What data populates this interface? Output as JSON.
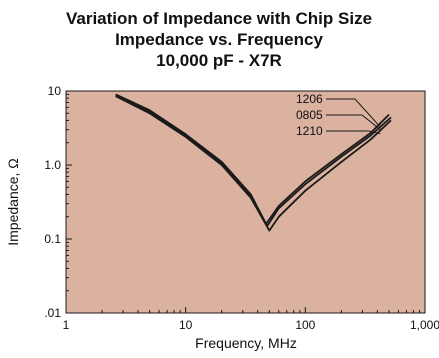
{
  "chart_data": {
    "type": "line",
    "title_lines": [
      "Variation of Impedance with Chip Size",
      "Impedance vs. Frequency",
      "10,000 pF - X7R"
    ],
    "xlabel": "Frequency, MHz",
    "ylabel": "Impedance, Ω",
    "x_scale": "log",
    "y_scale": "log",
    "xlim": [
      1,
      1000
    ],
    "ylim": [
      0.01,
      10
    ],
    "x_ticks": [
      1,
      10,
      100,
      1000
    ],
    "x_tick_labels": [
      "1",
      "10",
      "100",
      "1,000"
    ],
    "y_ticks": [
      0.01,
      0.1,
      1,
      10
    ],
    "y_tick_labels": [
      ".01",
      "0.1",
      "1.0",
      "10"
    ],
    "grid": false,
    "plot_background": "#dbb1a0",
    "line_color": "#1a1a1a",
    "series": [
      {
        "name": "1206",
        "x": [
          2.6,
          5,
          10,
          20,
          35,
          47,
          60,
          100,
          200,
          350,
          500
        ],
        "y": [
          9.0,
          5.5,
          2.6,
          1.1,
          0.4,
          0.16,
          0.28,
          0.6,
          1.4,
          2.7,
          4.8
        ]
      },
      {
        "name": "0805",
        "x": [
          2.6,
          5,
          10,
          20,
          35,
          48,
          60,
          100,
          200,
          350,
          520
        ],
        "y": [
          8.7,
          5.2,
          2.5,
          1.05,
          0.38,
          0.15,
          0.26,
          0.55,
          1.3,
          2.5,
          4.4
        ]
      },
      {
        "name": "1210",
        "x": [
          2.6,
          5,
          10,
          20,
          35,
          50,
          60,
          100,
          200,
          350,
          520
        ],
        "y": [
          8.5,
          5.0,
          2.4,
          1.0,
          0.36,
          0.13,
          0.2,
          0.45,
          1.1,
          2.2,
          4.0
        ]
      }
    ],
    "legend_position": "top-right"
  }
}
